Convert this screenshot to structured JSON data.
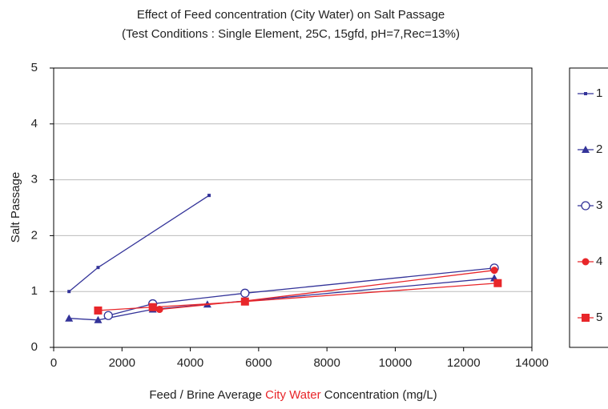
{
  "chart_data": {
    "type": "line",
    "title": "Effect of Feed concentration (City Water) on  Salt Passage",
    "subtitle": "(Test Conditions : Single Element, 25C, 15gfd, pH=7,Rec=13%)",
    "x_label_parts": [
      {
        "text": "Feed / Brine Average ",
        "color": "#222222"
      },
      {
        "text": "City Water",
        "color": "#e8262a"
      },
      {
        "text": " Concentration (mg/L)",
        "color": "#222222"
      }
    ],
    "y_label": "Salt Passage",
    "xlim": [
      0,
      14000
    ],
    "xticks": [
      0,
      2000,
      4000,
      6000,
      8000,
      10000,
      12000,
      14000
    ],
    "ylim": [
      0,
      5
    ],
    "yticks": [
      0,
      1,
      2,
      3,
      4,
      5
    ],
    "grid": true,
    "legend": "right",
    "series": [
      {
        "name": "1",
        "color": "#333399",
        "marker": "small-square",
        "x": [
          450,
          1300,
          4550
        ],
        "values": [
          1.0,
          1.43,
          2.72
        ]
      },
      {
        "name": "2",
        "color": "#333399",
        "marker": "triangle",
        "x": [
          450,
          1300,
          2900,
          4500,
          5600,
          12900
        ],
        "values": [
          0.52,
          0.49,
          0.68,
          0.77,
          0.83,
          1.24
        ]
      },
      {
        "name": "3",
        "color": "#333399",
        "marker": "open-circle",
        "x": [
          1600,
          2900,
          5600,
          12900
        ],
        "values": [
          0.57,
          0.78,
          0.97,
          1.42
        ]
      },
      {
        "name": "4",
        "color": "#e8262a",
        "marker": "circle",
        "x": [
          2900,
          3100,
          5600,
          12900
        ],
        "values": [
          0.72,
          0.68,
          0.83,
          1.38
        ]
      },
      {
        "name": "5",
        "color": "#e8262a",
        "marker": "square",
        "x": [
          1300,
          2900,
          5600,
          13000
        ],
        "values": [
          0.66,
          0.72,
          0.82,
          1.15
        ]
      }
    ]
  }
}
